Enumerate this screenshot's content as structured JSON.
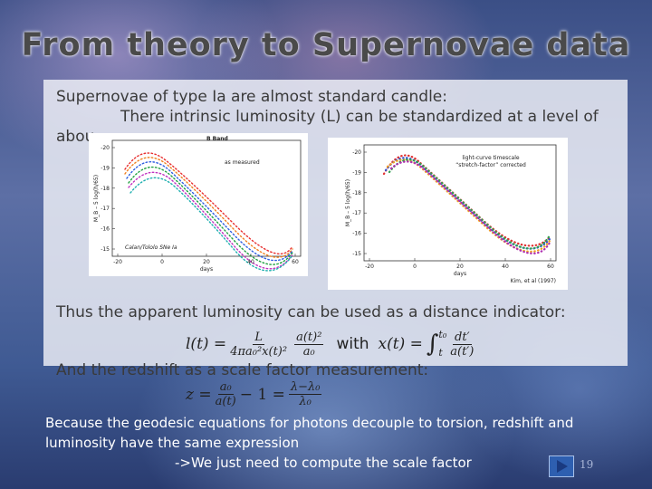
{
  "title": "From theory to Supernovae data",
  "bullets": [
    "Supernovae of type Ia are almost standard candle:",
    "There intrinsic luminosity (L) can be standardized at a level of",
    "abou",
    "Thus the apparent luminosity can be used as a distance indicator:",
    "And the redshift as a scale factor measurement:"
  ],
  "figures": [
    {
      "title": "B Band",
      "legend": "as measured",
      "caption": "Calan/Tololo SNe Ia",
      "y_label": "M_B – 5 log(h/65)",
      "x_label": "days",
      "yticks": [
        "-20",
        "-19",
        "-18",
        "-17",
        "-16",
        "-15"
      ],
      "xticks": [
        "-20",
        "0",
        "20",
        "40",
        "60"
      ]
    },
    {
      "legend": "light-curve timescale",
      "legend2": "“stretch-factor” corrected",
      "caption": "Kim, et al (1997)",
      "y_label": "M_B – 5 log(h/65)",
      "x_label": "days",
      "yticks": [
        "-20",
        "-19",
        "-18",
        "-17",
        "-16",
        "-15"
      ],
      "xticks": [
        "-20",
        "0",
        "20",
        "40",
        "60"
      ]
    }
  ],
  "equations": {
    "luminosity": {
      "lhs": "l(t) =",
      "num1": "L",
      "den1": "4πa₀²x(t)²",
      "num2": "a(t)²",
      "den2": "a₀",
      "with": "with",
      "x_lhs": "x(t) =",
      "integral": "∫",
      "upper": "t₀",
      "lower": "t",
      "num3": "dt′",
      "den3": "a(t′)"
    },
    "redshift": {
      "lhs": "z =",
      "num1": "a₀",
      "den1": "a(t)",
      "mid": "− 1 =",
      "num2": "λ−λ₀",
      "den2": "λ₀"
    }
  },
  "footer": [
    "Because the geodesic equations for photons decouple to torsion, redshift and",
    "luminosity have the same expression",
    "->We just need to compute the scale factor"
  ],
  "page_number": "19"
}
